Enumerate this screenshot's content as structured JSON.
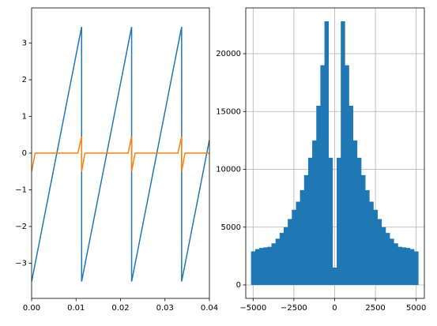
{
  "chart_data": [
    {
      "type": "line",
      "x": [
        0,
        0.0008,
        0.0104,
        0.01125,
        0.01125,
        0.012,
        0.0217,
        0.0225,
        0.0225,
        0.0233,
        0.0329,
        0.03375,
        0.03375,
        0.0345,
        0.04
      ],
      "series": [
        {
          "color": "#1f77b4",
          "values": [
            -3.5,
            -3.01,
            2.92,
            3.44,
            -3.5,
            -3.04,
            2.95,
            3.44,
            -3.5,
            -3.01,
            2.92,
            3.44,
            -3.5,
            -3.04,
            0.36
          ]
        },
        {
          "color": "#ff7f0e",
          "values": [
            -0.5,
            0,
            0,
            0.45,
            -0.5,
            0,
            0,
            0.45,
            -0.5,
            0,
            0,
            0.45,
            -0.5,
            0,
            0
          ]
        }
      ],
      "xlim": [
        0,
        0.04
      ],
      "xticks": [
        {
          "value": 0,
          "label": "0.00"
        },
        0.01,
        0.02,
        0.03,
        0.04
      ],
      "ylim": [
        -3.96,
        3.96
      ],
      "yticks": [
        {
          "value": -3,
          "label": "−3"
        },
        {
          "value": -2,
          "label": "−2"
        },
        {
          "value": -1,
          "label": "−1"
        },
        0,
        1,
        2,
        3
      ],
      "grid": false
    },
    {
      "type": "bar",
      "x": [
        -5000,
        -4750,
        -4500,
        -4250,
        -4000,
        -3750,
        -3500,
        -3250,
        -3000,
        -2750,
        -2500,
        -2250,
        -2000,
        -1750,
        -1500,
        -1250,
        -1000,
        -750,
        -500,
        -250,
        0,
        250,
        500,
        750,
        1000,
        1250,
        1500,
        1750,
        2000,
        2250,
        2500,
        2750,
        3000,
        3250,
        3500,
        3750,
        4000,
        4250,
        4500,
        4750,
        5000
      ],
      "values": [
        2900,
        3100,
        3200,
        3250,
        3300,
        3600,
        4000,
        4500,
        5000,
        5700,
        6500,
        7200,
        8200,
        9500,
        11000,
        12500,
        15500,
        19000,
        22800,
        11000,
        1500,
        11000,
        22800,
        19000,
        15500,
        12500,
        11000,
        9500,
        8200,
        7200,
        6500,
        5700,
        5000,
        4500,
        4000,
        3600,
        3300,
        3250,
        3200,
        3100,
        2900
      ],
      "color": "#1f77b4",
      "xlim": [
        -5450,
        5500
      ],
      "xticks": [
        {
          "value": -5000,
          "label": "−5000"
        },
        {
          "value": -2500,
          "label": "−2500"
        },
        0,
        2500,
        5000
      ],
      "ylim": [
        -1160,
        23960
      ],
      "yticks": [
        0,
        5000,
        10000,
        15000,
        20000
      ],
      "grid": true
    }
  ]
}
